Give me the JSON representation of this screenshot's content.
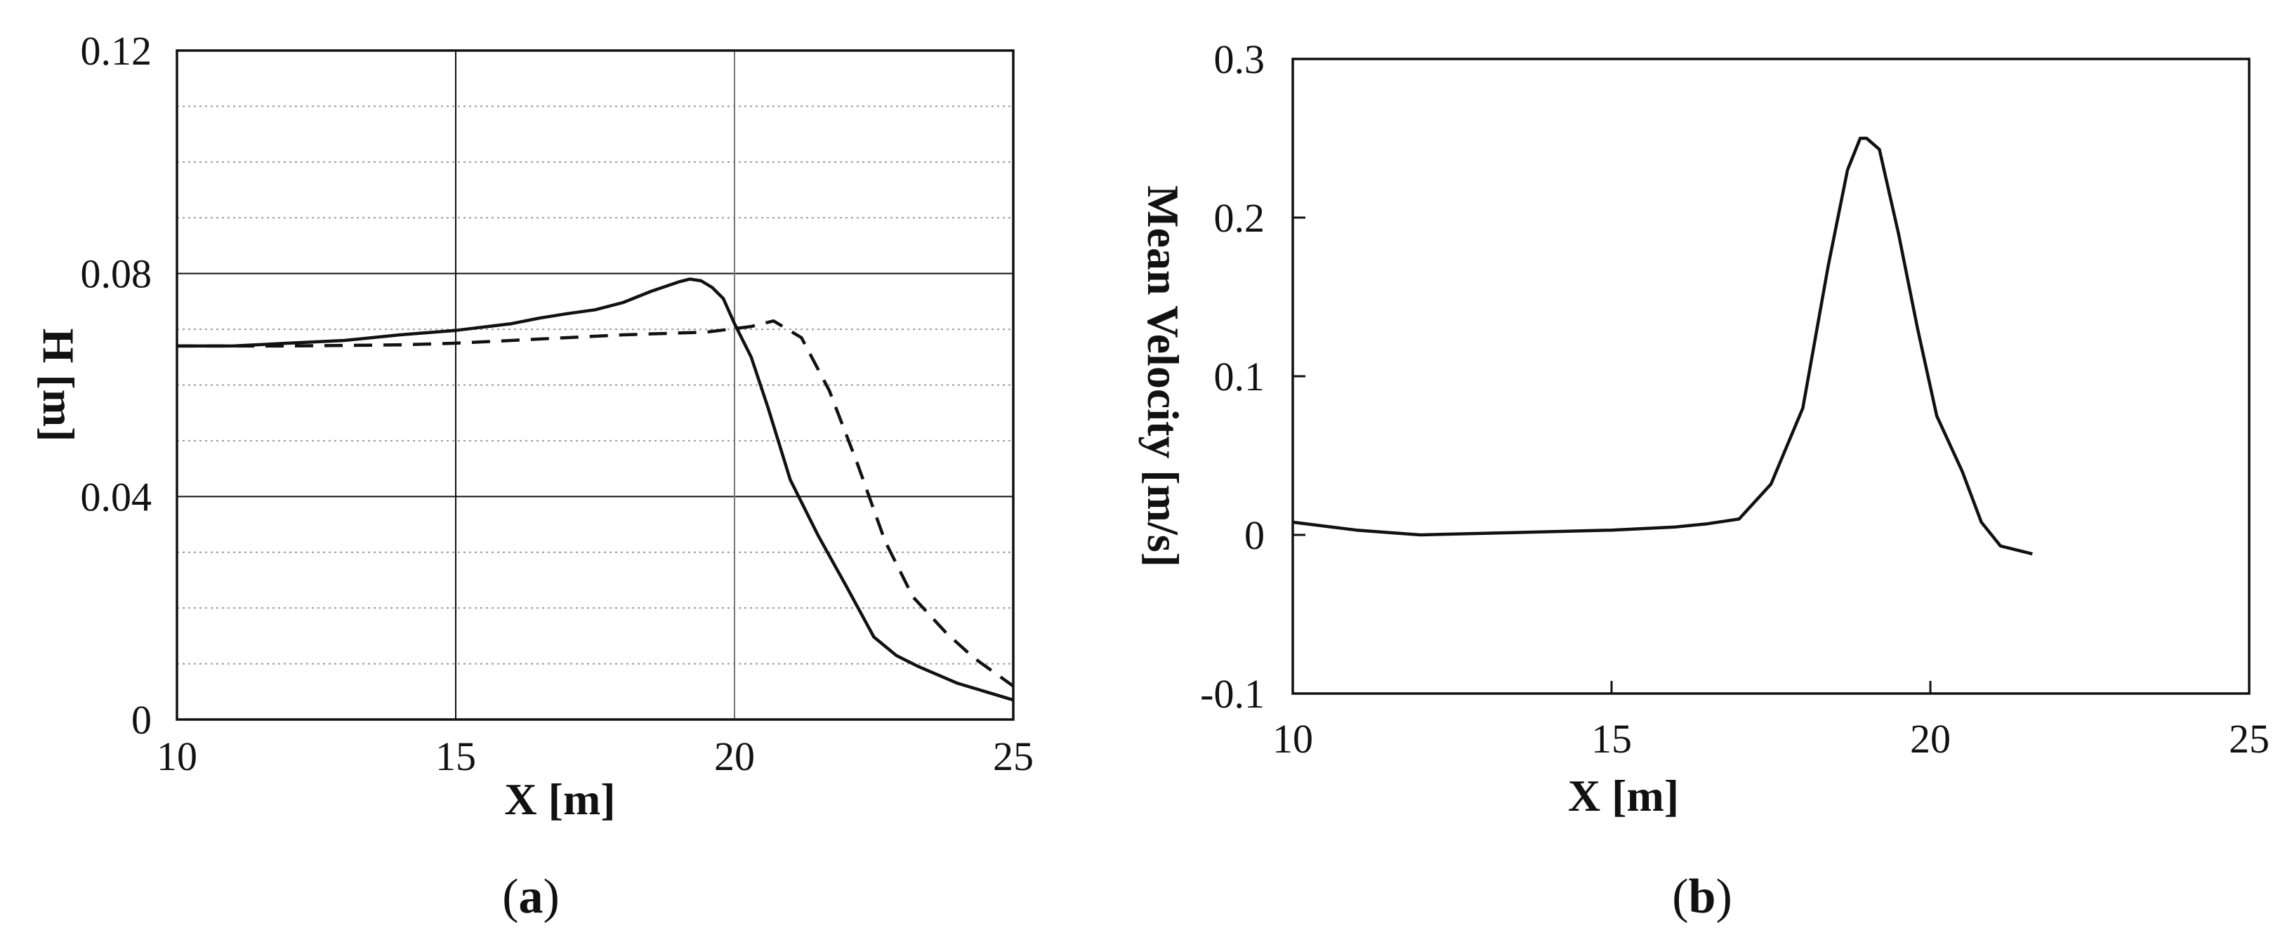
{
  "chart_data": [
    {
      "type": "line",
      "panel_label": "a",
      "xlabel": "X [m]",
      "ylabel": "H [m]",
      "xlim": [
        10,
        25
      ],
      "ylim": [
        0,
        0.12
      ],
      "xticks": [
        "10",
        "15",
        "20",
        "25"
      ],
      "yticks": [
        "0",
        "0.04",
        "0.08",
        "0.12"
      ],
      "grid": true,
      "legend": "none",
      "series": [
        {
          "style": "solid",
          "x": [
            10,
            11,
            12,
            13,
            14,
            15,
            16,
            16.5,
            17,
            17.5,
            18,
            18.5,
            19,
            19.2,
            19.4,
            19.6,
            19.8,
            20,
            20.3,
            20.6,
            21,
            21.5,
            22,
            22.5,
            22.9,
            23.3,
            24,
            24.5,
            25
          ],
          "y": [
            0.067,
            0.067,
            0.0675,
            0.068,
            0.069,
            0.0698,
            0.071,
            0.072,
            0.0728,
            0.0735,
            0.0748,
            0.0768,
            0.0785,
            0.079,
            0.0787,
            0.0775,
            0.0755,
            0.071,
            0.065,
            0.056,
            0.043,
            0.033,
            0.024,
            0.0148,
            0.0115,
            0.0095,
            0.0065,
            0.005,
            0.0035
          ]
        },
        {
          "style": "dashed",
          "x": [
            10,
            12,
            14,
            15,
            16,
            18,
            19.5,
            20.3,
            20.7,
            21.2,
            21.7,
            22.2,
            22.7,
            23.2,
            23.8,
            24.3,
            25
          ],
          "y": [
            0.067,
            0.067,
            0.0672,
            0.0675,
            0.068,
            0.069,
            0.0695,
            0.0705,
            0.0715,
            0.0685,
            0.059,
            0.046,
            0.032,
            0.022,
            0.0155,
            0.011,
            0.006
          ]
        }
      ]
    },
    {
      "type": "line",
      "panel_label": "b",
      "xlabel": "X [m]",
      "ylabel": "Mean Velocity [m/s]",
      "xlim": [
        10,
        25
      ],
      "ylim": [
        -0.1,
        0.3
      ],
      "xticks": [
        "10",
        "15",
        "20",
        "25"
      ],
      "yticks": [
        "-0.1",
        "0",
        "0.1",
        "0.2",
        "0.3"
      ],
      "grid": false,
      "legend": "none",
      "series": [
        {
          "style": "solid",
          "x": [
            10,
            11,
            12,
            13,
            14,
            15,
            16,
            16.5,
            17,
            17.5,
            18,
            18.4,
            18.7,
            18.9,
            19,
            19.2,
            19.5,
            19.8,
            20.1,
            20.5,
            20.8,
            21.1,
            21.6
          ],
          "y": [
            0.008,
            0.003,
            0.0,
            0.001,
            0.002,
            0.003,
            0.005,
            0.007,
            0.01,
            0.032,
            0.08,
            0.17,
            0.23,
            0.25,
            0.25,
            0.243,
            0.19,
            0.13,
            0.075,
            0.04,
            0.008,
            -0.007,
            -0.012
          ]
        }
      ]
    }
  ]
}
